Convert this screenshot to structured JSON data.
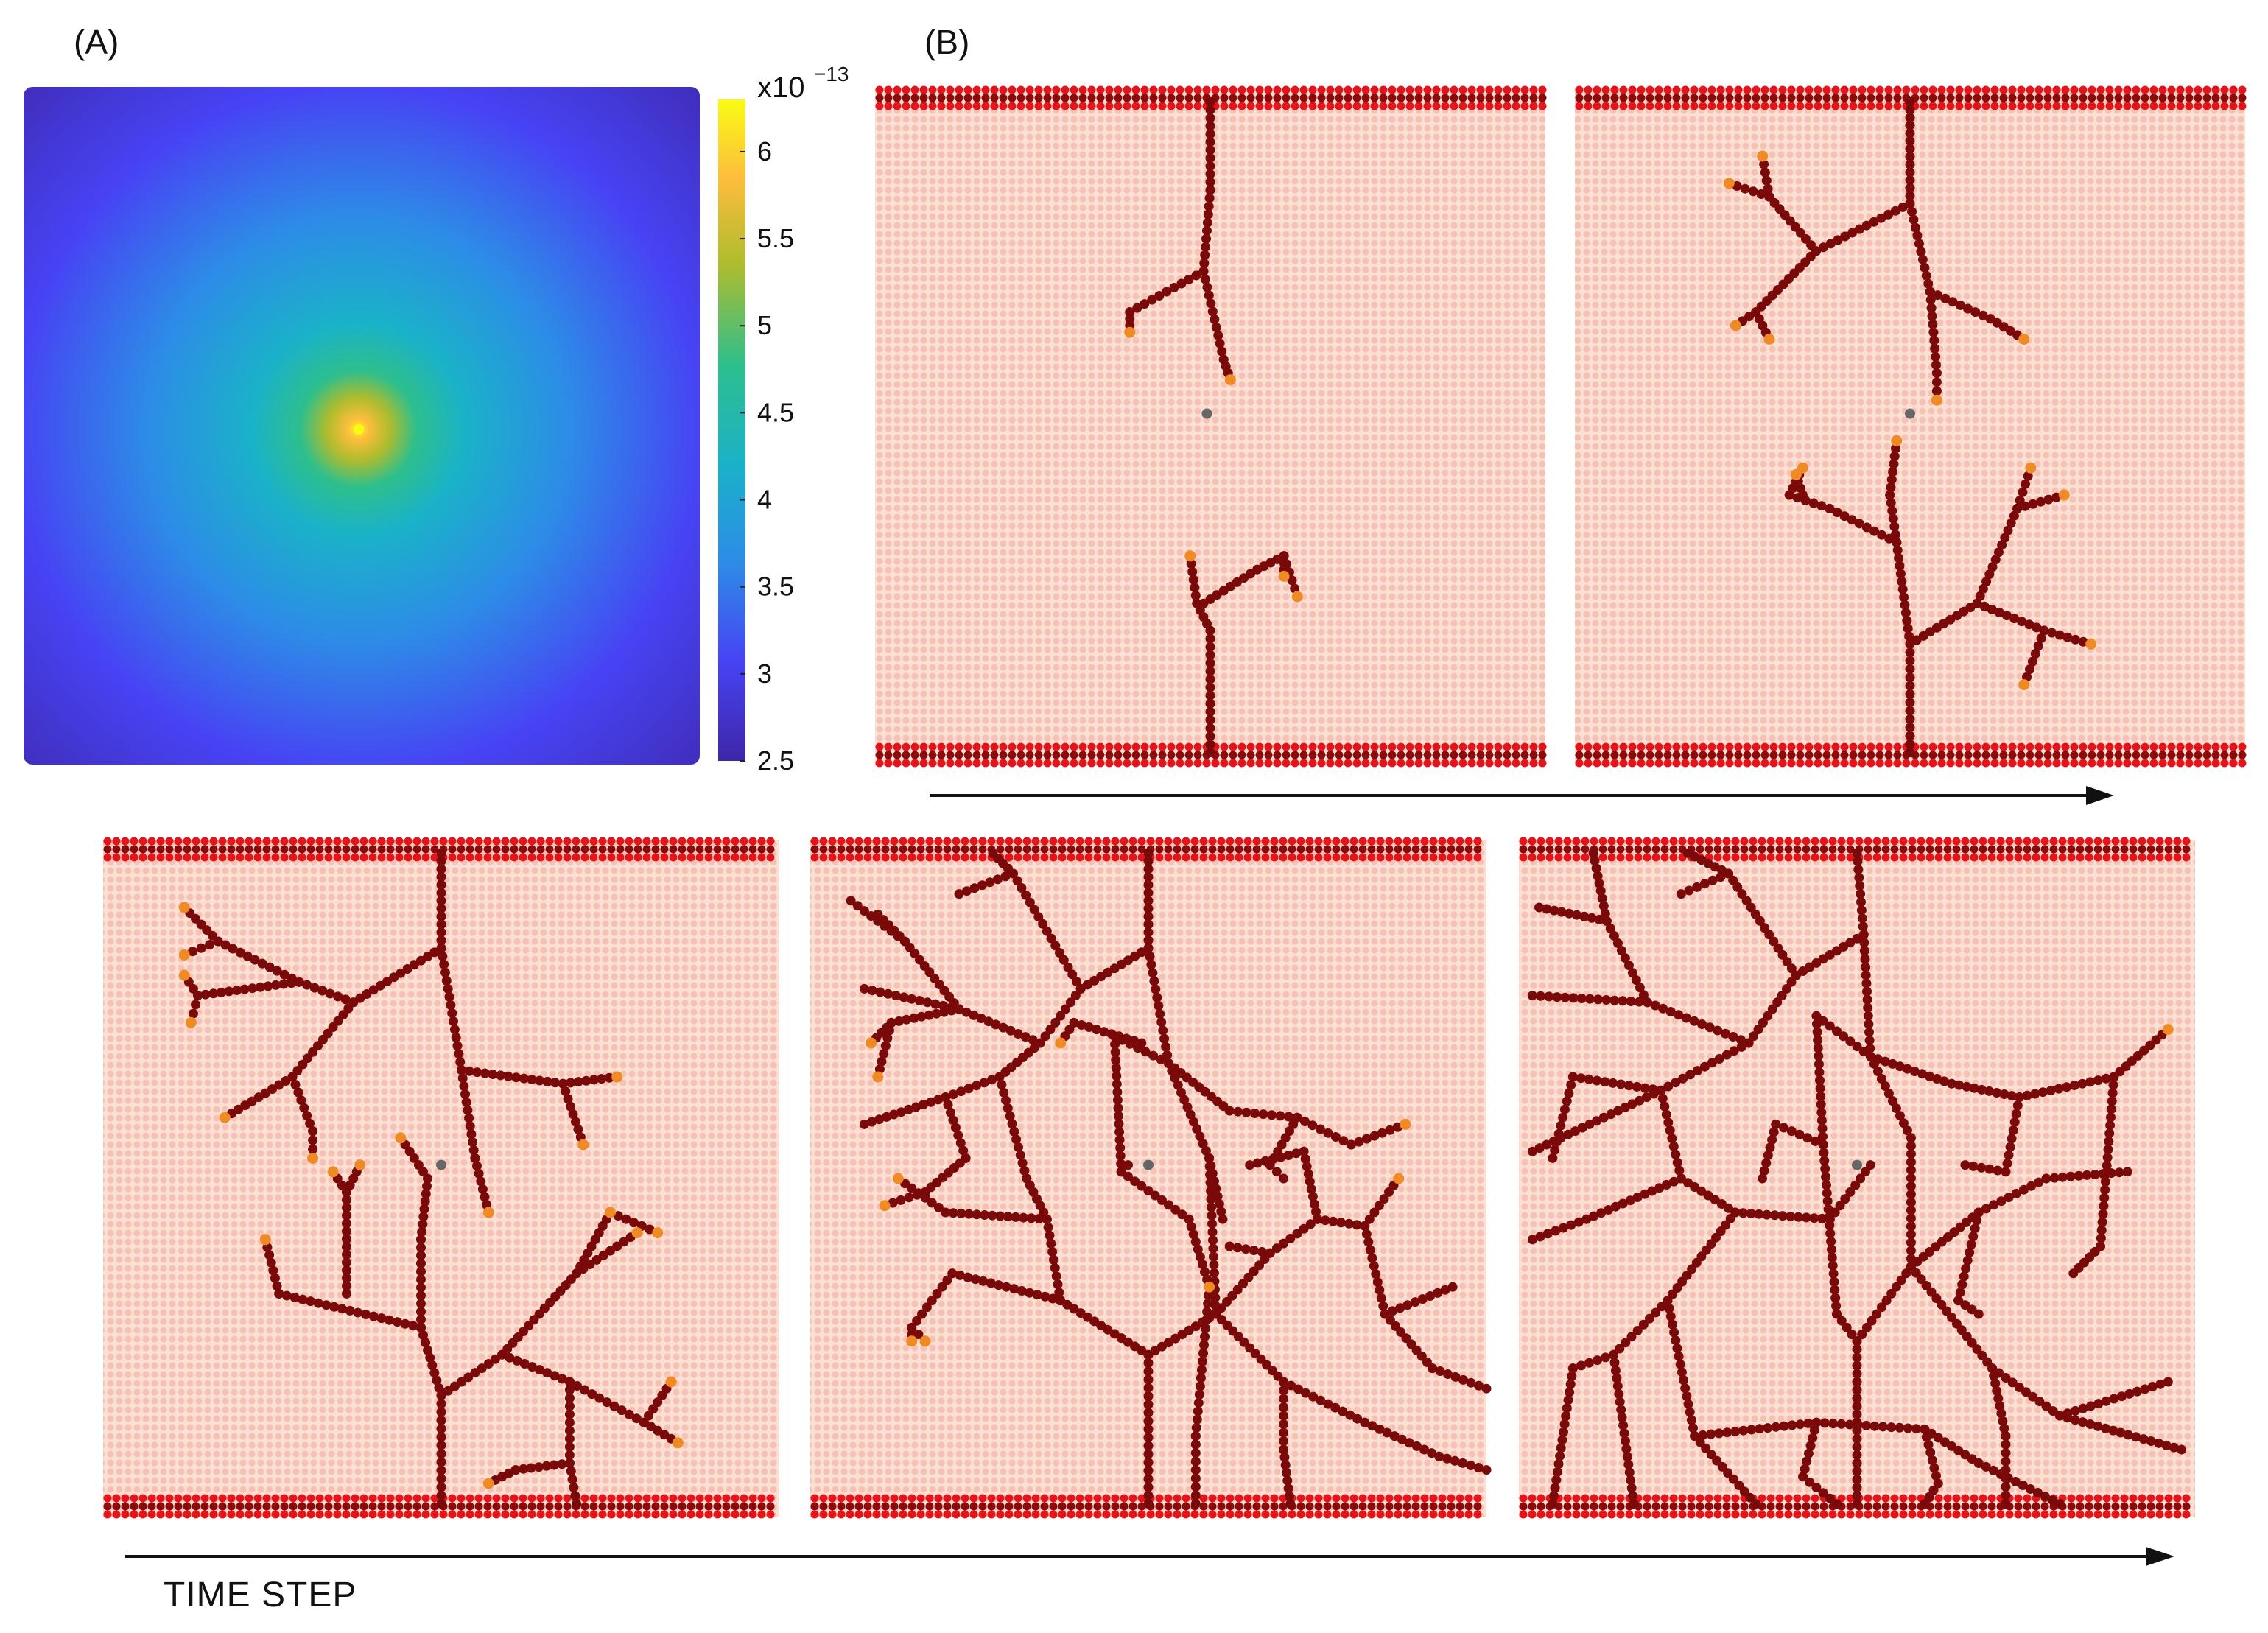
{
  "labels": {
    "panel_a": "(A)",
    "panel_b": "(B)",
    "time_axis": "TIME STEP"
  },
  "colorbar": {
    "exponent_base": "x10",
    "exponent_power": "−13",
    "min": 2.5,
    "max": 6.3,
    "ticks": [
      "6",
      "5.5",
      "5",
      "4.5",
      "4",
      "3.5",
      "3",
      "2.5"
    ],
    "tick_values": [
      6,
      5.5,
      5,
      4.5,
      4,
      3.5,
      3,
      2.5
    ],
    "colormap": [
      "#3e26a8",
      "#4743f4",
      "#2d8ce7",
      "#1ab2c8",
      "#2ebf8c",
      "#aebc2e",
      "#fdbd3c",
      "#f9fb14"
    ]
  },
  "heatmap": {
    "source_position": "center",
    "min_color": "#3e26a8",
    "max_color": "#f9fb14"
  },
  "colors": {
    "tissue_dot": "#f6c2b3",
    "tissue_bg": "#fbe0d6",
    "vessel_wall": "#e5141a",
    "vessel_wall_dark": "#8a0b0b",
    "sprout": "#7a0a0a",
    "tip_cell": "#f08a24",
    "source": "#666666"
  },
  "snapshots": [
    {
      "name": "time-step-1"
    },
    {
      "name": "time-step-2"
    },
    {
      "name": "time-step-3"
    },
    {
      "name": "time-step-4"
    },
    {
      "name": "time-step-5"
    }
  ]
}
